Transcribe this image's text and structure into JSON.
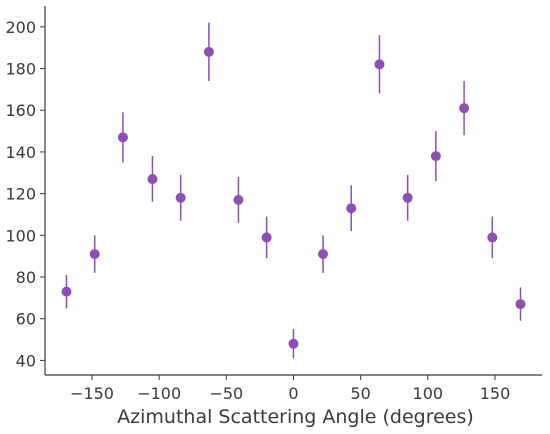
{
  "chart_data": {
    "type": "scatter",
    "title": "",
    "xlabel": "Azimuthal Scattering Angle (degrees)",
    "ylabel": "",
    "xlim": [
      -185,
      185
    ],
    "ylim": [
      33,
      210
    ],
    "xticks": [
      -150,
      -100,
      -50,
      0,
      50,
      100,
      150
    ],
    "xtick_labels": [
      "−150",
      "−100",
      "−50",
      "0",
      "50",
      "100",
      "150"
    ],
    "yticks": [
      40,
      60,
      80,
      100,
      120,
      140,
      160,
      180,
      200
    ],
    "ytick_labels": [
      "40",
      "60",
      "80",
      "100",
      "120",
      "140",
      "160",
      "180",
      "200"
    ],
    "grid": false,
    "marker_color": "#8e4fb5",
    "series": [
      {
        "x": [
          -169,
          -148,
          -127,
          -105,
          -84,
          -63,
          -41,
          -20,
          0,
          22,
          43,
          64,
          85,
          106,
          127,
          148,
          169
        ],
        "y": [
          73,
          91,
          147,
          127,
          118,
          188,
          117,
          99,
          48,
          91,
          113,
          182,
          118,
          138,
          161,
          99,
          67
        ],
        "yerr": [
          8,
          9,
          12,
          11,
          11,
          14,
          11,
          10,
          7,
          9,
          11,
          14,
          11,
          12,
          13,
          10,
          8
        ]
      }
    ]
  }
}
